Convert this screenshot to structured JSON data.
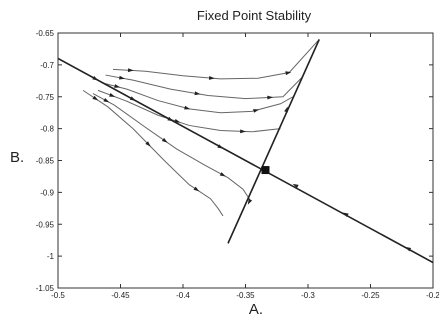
{
  "chart_data": {
    "type": "line",
    "title": "Fixed Point Stability",
    "xlabel": "A.",
    "ylabel": "B.",
    "xlim": [
      -0.5,
      -0.2
    ],
    "ylim": [
      -1.05,
      -0.65
    ],
    "x_ticks": [
      "-0.5",
      "-0.45",
      "-0.4",
      "-0.35",
      "-0.3",
      "-0.25",
      "-0.2"
    ],
    "y_ticks": [
      "-0.65",
      "-0.7",
      "-0.75",
      "-0.8",
      "-0.85",
      "-0.9",
      "-0.95",
      "-1",
      "-1.05"
    ],
    "fixed_point": {
      "x": -0.334,
      "y": -0.865
    },
    "stable_manifold": [
      {
        "x": -0.5,
        "y": -0.69
      },
      {
        "x": -0.2,
        "y": -1.01
      }
    ],
    "unstable_manifold": [
      {
        "x": -0.364,
        "y": -0.98
      },
      {
        "x": -0.291,
        "y": -0.66
      }
    ],
    "trajectories": [
      {
        "points": [
          [
            -0.456,
            -0.707
          ],
          [
            -0.43,
            -0.71
          ],
          [
            -0.4,
            -0.717
          ],
          [
            -0.37,
            -0.722
          ],
          [
            -0.34,
            -0.721
          ],
          [
            -0.315,
            -0.712
          ],
          [
            -0.292,
            -0.662
          ]
        ]
      },
      {
        "points": [
          [
            -0.462,
            -0.716
          ],
          [
            -0.44,
            -0.724
          ],
          [
            -0.41,
            -0.738
          ],
          [
            -0.38,
            -0.748
          ],
          [
            -0.35,
            -0.753
          ],
          [
            -0.32,
            -0.75
          ],
          [
            -0.304,
            -0.718
          ]
        ]
      },
      {
        "points": [
          [
            -0.465,
            -0.728
          ],
          [
            -0.445,
            -0.738
          ],
          [
            -0.42,
            -0.756
          ],
          [
            -0.395,
            -0.769
          ],
          [
            -0.37,
            -0.775
          ],
          [
            -0.345,
            -0.773
          ],
          [
            -0.322,
            -0.761
          ],
          [
            -0.312,
            -0.75
          ]
        ]
      },
      {
        "points": [
          [
            -0.468,
            -0.74
          ],
          [
            -0.445,
            -0.757
          ],
          [
            -0.42,
            -0.779
          ],
          [
            -0.395,
            -0.795
          ],
          [
            -0.37,
            -0.803
          ],
          [
            -0.345,
            -0.805
          ],
          [
            -0.322,
            -0.8
          ]
        ]
      },
      {
        "points": [
          [
            -0.472,
            -0.745
          ],
          [
            -0.455,
            -0.763
          ],
          [
            -0.43,
            -0.798
          ],
          [
            -0.405,
            -0.832
          ],
          [
            -0.382,
            -0.858
          ],
          [
            -0.364,
            -0.877
          ],
          [
            -0.352,
            -0.895
          ],
          [
            -0.346,
            -0.913
          ]
        ]
      },
      {
        "points": [
          [
            -0.48,
            -0.74
          ],
          [
            -0.46,
            -0.766
          ],
          [
            -0.44,
            -0.8
          ],
          [
            -0.415,
            -0.85
          ],
          [
            -0.395,
            -0.888
          ],
          [
            -0.378,
            -0.91
          ],
          [
            -0.372,
            -0.925
          ],
          [
            -0.368,
            -0.937
          ]
        ]
      }
    ]
  }
}
